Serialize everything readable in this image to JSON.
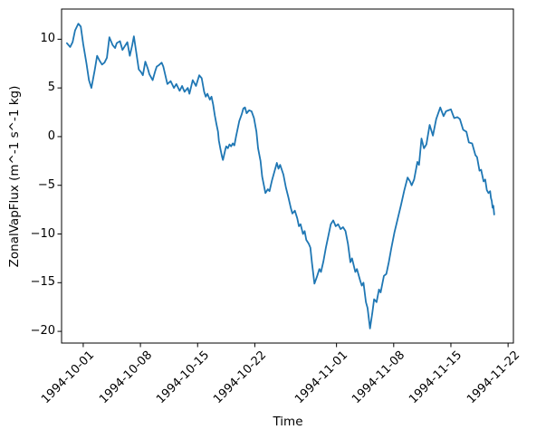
{
  "chart_data": {
    "type": "line",
    "title": "",
    "xlabel": "Time",
    "ylabel": "ZonalVapFlux (m^-1 s^-1 kg)",
    "x_unit": "days since 1994-10-01",
    "xlim": [
      -2.65,
      52.65
    ],
    "ylim": [
      -21.2,
      13.1
    ],
    "grid": false,
    "legend": "none",
    "x_ticks": [
      {
        "pos": 0,
        "label": "1994-10-01"
      },
      {
        "pos": 7,
        "label": "1994-10-08"
      },
      {
        "pos": 14,
        "label": "1994-10-15"
      },
      {
        "pos": 21,
        "label": "1994-10-22"
      },
      {
        "pos": 31,
        "label": "1994-11-01"
      },
      {
        "pos": 38,
        "label": "1994-11-08"
      },
      {
        "pos": 45,
        "label": "1994-11-15"
      },
      {
        "pos": 52,
        "label": "1994-11-22"
      }
    ],
    "y_ticks": [
      {
        "pos": 10,
        "label": "10"
      },
      {
        "pos": 5,
        "label": "5"
      },
      {
        "pos": 0,
        "label": "0"
      },
      {
        "pos": -5,
        "label": "−5"
      },
      {
        "pos": -10,
        "label": "−10"
      },
      {
        "pos": -15,
        "label": "−15"
      },
      {
        "pos": -20,
        "label": "−20"
      }
    ],
    "series": [
      {
        "name": "ZonalVapFlux",
        "color": "#1f77b4",
        "line_width": 1.8,
        "points": [
          [
            -2.0,
            9.6
          ],
          [
            -1.6,
            9.2
          ],
          [
            -1.3,
            9.7
          ],
          [
            -1.0,
            10.9
          ],
          [
            -0.6,
            11.6
          ],
          [
            -0.3,
            11.3
          ],
          [
            0.0,
            9.5
          ],
          [
            0.4,
            7.5
          ],
          [
            0.7,
            5.8
          ],
          [
            1.0,
            5.0
          ],
          [
            1.4,
            6.8
          ],
          [
            1.7,
            8.3
          ],
          [
            2.0,
            7.8
          ],
          [
            2.3,
            7.4
          ],
          [
            2.6,
            7.6
          ],
          [
            2.9,
            8.1
          ],
          [
            3.2,
            10.2
          ],
          [
            3.6,
            9.4
          ],
          [
            3.9,
            9.1
          ],
          [
            4.1,
            9.6
          ],
          [
            4.5,
            9.8
          ],
          [
            4.8,
            8.9
          ],
          [
            5.1,
            9.3
          ],
          [
            5.4,
            9.7
          ],
          [
            5.7,
            8.3
          ],
          [
            6.0,
            9.4
          ],
          [
            6.2,
            10.3
          ],
          [
            6.5,
            8.6
          ],
          [
            6.8,
            6.9
          ],
          [
            7.1,
            6.6
          ],
          [
            7.3,
            6.3
          ],
          [
            7.6,
            7.7
          ],
          [
            7.9,
            7.0
          ],
          [
            8.1,
            6.4
          ],
          [
            8.5,
            5.8
          ],
          [
            8.8,
            6.7
          ],
          [
            9.0,
            7.2
          ],
          [
            9.2,
            7.3
          ],
          [
            9.6,
            7.6
          ],
          [
            9.8,
            7.2
          ],
          [
            10.3,
            5.4
          ],
          [
            10.7,
            5.7
          ],
          [
            11.1,
            5.0
          ],
          [
            11.4,
            5.4
          ],
          [
            11.8,
            4.7
          ],
          [
            12.1,
            5.2
          ],
          [
            12.4,
            4.6
          ],
          [
            12.8,
            5.0
          ],
          [
            13.0,
            4.4
          ],
          [
            13.4,
            5.8
          ],
          [
            13.8,
            5.2
          ],
          [
            14.2,
            6.3
          ],
          [
            14.5,
            6.0
          ],
          [
            14.8,
            4.6
          ],
          [
            15.0,
            4.1
          ],
          [
            15.2,
            4.4
          ],
          [
            15.5,
            3.8
          ],
          [
            15.7,
            4.1
          ],
          [
            15.9,
            3.3
          ],
          [
            16.1,
            2.2
          ],
          [
            16.3,
            1.3
          ],
          [
            16.5,
            0.5
          ],
          [
            16.6,
            -0.4
          ],
          [
            16.8,
            -1.3
          ],
          [
            17.0,
            -2.1
          ],
          [
            17.1,
            -2.4
          ],
          [
            17.4,
            -1.3
          ],
          [
            17.5,
            -1.0
          ],
          [
            17.7,
            -1.2
          ],
          [
            17.9,
            -0.8
          ],
          [
            18.1,
            -1.0
          ],
          [
            18.3,
            -0.7
          ],
          [
            18.5,
            -0.9
          ],
          [
            18.7,
            0.0
          ],
          [
            18.9,
            0.8
          ],
          [
            19.1,
            1.6
          ],
          [
            19.4,
            2.3
          ],
          [
            19.6,
            2.9
          ],
          [
            19.8,
            3.0
          ],
          [
            20.0,
            2.4
          ],
          [
            20.3,
            2.7
          ],
          [
            20.6,
            2.6
          ],
          [
            20.9,
            1.9
          ],
          [
            21.2,
            0.5
          ],
          [
            21.4,
            -1.2
          ],
          [
            21.7,
            -2.5
          ],
          [
            21.9,
            -4.1
          ],
          [
            22.3,
            -5.8
          ],
          [
            22.6,
            -5.4
          ],
          [
            22.8,
            -5.6
          ],
          [
            23.1,
            -4.5
          ],
          [
            23.4,
            -3.6
          ],
          [
            23.7,
            -2.7
          ],
          [
            23.9,
            -3.3
          ],
          [
            24.1,
            -2.9
          ],
          [
            24.5,
            -3.9
          ],
          [
            24.8,
            -5.2
          ],
          [
            25.1,
            -6.2
          ],
          [
            25.4,
            -7.3
          ],
          [
            25.6,
            -7.9
          ],
          [
            25.9,
            -7.6
          ],
          [
            26.2,
            -8.4
          ],
          [
            26.4,
            -9.2
          ],
          [
            26.6,
            -9.0
          ],
          [
            26.9,
            -10.0
          ],
          [
            27.1,
            -9.7
          ],
          [
            27.3,
            -10.6
          ],
          [
            27.6,
            -11.0
          ],
          [
            27.8,
            -11.4
          ],
          [
            28.0,
            -13.0
          ],
          [
            28.3,
            -15.1
          ],
          [
            28.6,
            -14.4
          ],
          [
            28.9,
            -13.6
          ],
          [
            29.1,
            -13.9
          ],
          [
            29.4,
            -12.8
          ],
          [
            29.7,
            -11.4
          ],
          [
            30.0,
            -10.2
          ],
          [
            30.3,
            -9.0
          ],
          [
            30.6,
            -8.6
          ],
          [
            30.9,
            -9.2
          ],
          [
            31.2,
            -9.0
          ],
          [
            31.5,
            -9.5
          ],
          [
            31.8,
            -9.3
          ],
          [
            32.1,
            -9.7
          ],
          [
            32.4,
            -11.0
          ],
          [
            32.7,
            -12.9
          ],
          [
            32.9,
            -12.5
          ],
          [
            33.3,
            -13.9
          ],
          [
            33.5,
            -13.6
          ],
          [
            33.9,
            -14.8
          ],
          [
            34.1,
            -15.3
          ],
          [
            34.3,
            -15.0
          ],
          [
            34.6,
            -17.0
          ],
          [
            34.8,
            -17.6
          ],
          [
            35.1,
            -19.7
          ],
          [
            35.4,
            -18.0
          ],
          [
            35.6,
            -16.7
          ],
          [
            35.9,
            -17.0
          ],
          [
            36.2,
            -15.7
          ],
          [
            36.4,
            -16.0
          ],
          [
            36.8,
            -14.3
          ],
          [
            37.1,
            -14.1
          ],
          [
            37.4,
            -12.9
          ],
          [
            37.7,
            -11.5
          ],
          [
            38.1,
            -9.8
          ],
          [
            38.5,
            -8.4
          ],
          [
            38.9,
            -7.0
          ],
          [
            39.3,
            -5.5
          ],
          [
            39.7,
            -4.2
          ],
          [
            40.0,
            -4.6
          ],
          [
            40.2,
            -5.0
          ],
          [
            40.5,
            -4.4
          ],
          [
            40.9,
            -2.6
          ],
          [
            41.1,
            -2.9
          ],
          [
            41.4,
            -0.2
          ],
          [
            41.7,
            -1.2
          ],
          [
            42.0,
            -0.8
          ],
          [
            42.4,
            1.2
          ],
          [
            42.8,
            0.1
          ],
          [
            43.2,
            1.8
          ],
          [
            43.7,
            3.0
          ],
          [
            44.1,
            2.1
          ],
          [
            44.4,
            2.6
          ],
          [
            44.7,
            2.7
          ],
          [
            45.0,
            2.8
          ],
          [
            45.4,
            1.9
          ],
          [
            45.8,
            2.0
          ],
          [
            46.1,
            1.8
          ],
          [
            46.5,
            0.7
          ],
          [
            46.9,
            0.5
          ],
          [
            47.2,
            -0.6
          ],
          [
            47.6,
            -0.7
          ],
          [
            48.0,
            -1.9
          ],
          [
            48.2,
            -2.1
          ],
          [
            48.5,
            -3.5
          ],
          [
            48.7,
            -3.4
          ],
          [
            49.0,
            -4.6
          ],
          [
            49.2,
            -4.4
          ],
          [
            49.4,
            -5.5
          ],
          [
            49.6,
            -5.8
          ],
          [
            49.8,
            -5.6
          ],
          [
            49.9,
            -6.3
          ],
          [
            50.0,
            -6.6
          ],
          [
            50.1,
            -7.3
          ],
          [
            50.2,
            -7.1
          ],
          [
            50.3,
            -8.0
          ]
        ]
      }
    ]
  }
}
